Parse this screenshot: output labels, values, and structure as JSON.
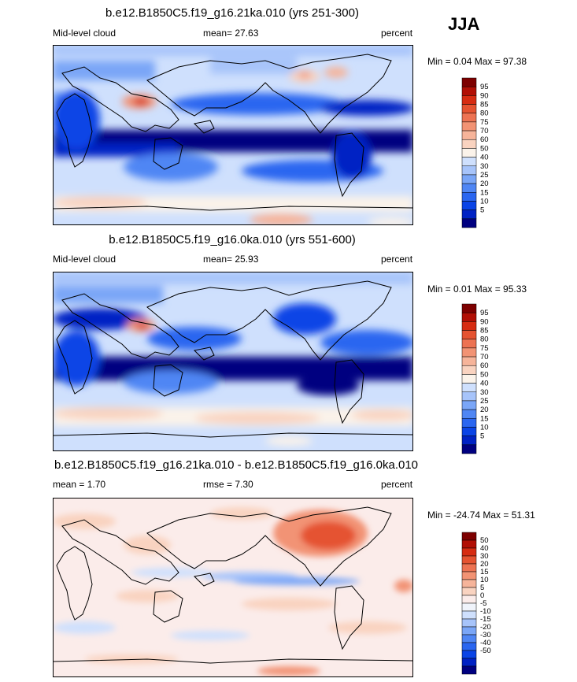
{
  "season": "JJA",
  "colors": {
    "abs_scale": [
      "#000080",
      "#0022c4",
      "#0a44e6",
      "#2a66f0",
      "#4f86f4",
      "#7aa6f7",
      "#a7c4fa",
      "#cfe0fd",
      "#fbf3ea",
      "#f9d3c0",
      "#f6b49a",
      "#f29374",
      "#ed7353",
      "#e55331",
      "#d62c12",
      "#b10f05",
      "#7d0000"
    ],
    "diff_scale": [
      "#000080",
      "#0022c4",
      "#0a44e6",
      "#2a66f0",
      "#4f86f4",
      "#7aa6f7",
      "#a7c4fa",
      "#cfe0fd",
      "#f0f4fb",
      "#fbecea",
      "#f9d3c0",
      "#f6b49a",
      "#f29374",
      "#ed7353",
      "#e55331",
      "#d62c12",
      "#b10f05",
      "#7d0000"
    ]
  },
  "chart_data": [
    {
      "type": "heatmap",
      "title": "b.e12.B1850C5.f19_g16.21ka.010 (yrs 251-300)",
      "variable": "Mid-level cloud",
      "stat_label": "mean=  27.63",
      "mean": 27.63,
      "units": "percent",
      "minmax_label": "Min =   0.04 Max =  97.38",
      "min": 0.04,
      "max": 97.38,
      "colorbar_levels": [
        "95",
        "90",
        "85",
        "80",
        "75",
        "70",
        "60",
        "50",
        "40",
        "30",
        "25",
        "20",
        "15",
        "10",
        "5"
      ],
      "projection": "global cylindrical equidistant, 0E centred at 180"
    },
    {
      "type": "heatmap",
      "title": "b.e12.B1850C5.f19_g16.0ka.010 (yrs 551-600)",
      "variable": "Mid-level cloud",
      "stat_label": "mean=  25.93",
      "mean": 25.93,
      "units": "percent",
      "minmax_label": "Min =   0.01 Max =  95.33",
      "min": 0.01,
      "max": 95.33,
      "colorbar_levels": [
        "95",
        "90",
        "85",
        "80",
        "75",
        "70",
        "60",
        "50",
        "40",
        "30",
        "25",
        "20",
        "15",
        "10",
        "5"
      ],
      "projection": "global cylindrical equidistant, 0E centred at 180"
    },
    {
      "type": "heatmap",
      "title": "b.e12.B1850C5.f19_g16.21ka.010 - b.e12.B1850C5.f19_g16.0ka.010",
      "stat_label": "mean =   1.70",
      "mean": 1.7,
      "rmse_label": "rmse =   7.30",
      "rmse": 7.3,
      "units": "percent",
      "minmax_label": "Min = -24.74 Max =  51.31",
      "min": -24.74,
      "max": 51.31,
      "colorbar_levels": [
        "50",
        "40",
        "30",
        "20",
        "15",
        "10",
        "5",
        "0",
        "-5",
        "-10",
        "-15",
        "-20",
        "-30",
        "-40",
        "-50"
      ],
      "projection": "global cylindrical equidistant, 0E centred at 180"
    }
  ]
}
